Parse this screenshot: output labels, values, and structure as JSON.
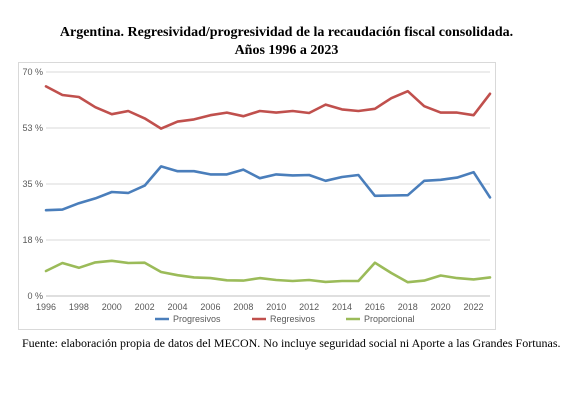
{
  "chart_data": {
    "type": "line",
    "title_line1": "Argentina. Regresividad/progresividad de la recaudación fiscal consolidada.",
    "title_line2": "Años 1996 a 2023",
    "x": [
      1996,
      1997,
      1998,
      1999,
      2000,
      2001,
      2002,
      2003,
      2004,
      2005,
      2006,
      2007,
      2008,
      2009,
      2010,
      2011,
      2012,
      2013,
      2014,
      2015,
      2016,
      2017,
      2018,
      2019,
      2020,
      2021,
      2022,
      2023
    ],
    "x_tick_labels": [
      "1996",
      "1998",
      "2000",
      "2002",
      "2004",
      "2006",
      "2008",
      "2010",
      "2012",
      "2014",
      "2016",
      "2018",
      "2020",
      "2022"
    ],
    "y_tick_labels": [
      "0 %",
      "18 %",
      "35 %",
      "53 %",
      "70 %"
    ],
    "y_tick_values": [
      0,
      17.5,
      35,
      52.5,
      70
    ],
    "ylim": [
      0,
      70
    ],
    "grid": true,
    "legend_position": "bottom",
    "series": [
      {
        "name": "Progresivos",
        "color": "#4a7ebb",
        "values": [
          26.8,
          27.0,
          29.0,
          30.5,
          32.5,
          32.2,
          34.5,
          40.5,
          39.0,
          39.0,
          38.0,
          38.0,
          39.5,
          36.8,
          38.0,
          37.7,
          37.8,
          36.0,
          37.2,
          37.8,
          31.3,
          31.4,
          31.5,
          36.0,
          36.3,
          37.0,
          38.7,
          30.8
        ]
      },
      {
        "name": "Regresivos",
        "color": "#c0504d",
        "values": [
          65.5,
          62.8,
          62.2,
          59.0,
          56.8,
          57.8,
          55.5,
          52.3,
          54.5,
          55.2,
          56.5,
          57.3,
          56.2,
          57.8,
          57.3,
          57.8,
          57.2,
          59.8,
          58.3,
          57.8,
          58.5,
          61.8,
          64.0,
          59.3,
          57.3,
          57.3,
          56.5,
          63.2
        ]
      },
      {
        "name": "Proporcional",
        "color": "#9bbb59",
        "values": [
          7.8,
          10.3,
          8.8,
          10.5,
          11.0,
          10.3,
          10.4,
          7.5,
          6.5,
          5.8,
          5.6,
          4.9,
          4.8,
          5.6,
          5.0,
          4.7,
          5.0,
          4.4,
          4.7,
          4.7,
          10.4,
          7.2,
          4.3,
          4.8,
          6.4,
          5.6,
          5.2,
          5.8
        ]
      }
    ]
  },
  "source_note": "Fuente: elaboración propia de datos del MECON. No incluye seguridad social ni Aporte a las Grandes Fortunas."
}
